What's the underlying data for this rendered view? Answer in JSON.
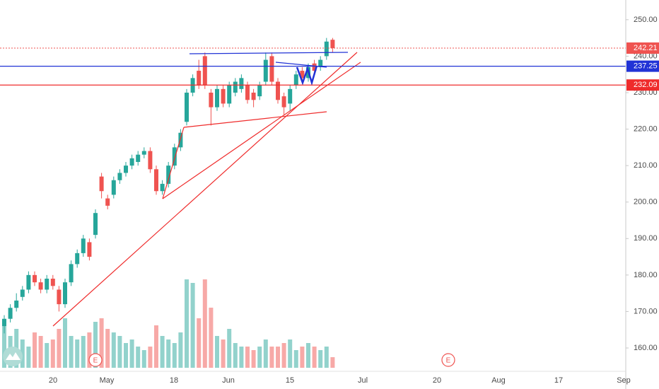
{
  "chart_data": {
    "type": "candlestick",
    "ylim": [
      153.6,
      255.4
    ],
    "yticks": [
      {
        "value": 160,
        "label": "160.00"
      },
      {
        "value": 170,
        "label": "170.00"
      },
      {
        "value": 180,
        "label": "180.00"
      },
      {
        "value": 190,
        "label": "190.00"
      },
      {
        "value": 200,
        "label": "200.00"
      },
      {
        "value": 210,
        "label": "210.00"
      },
      {
        "value": 220,
        "label": "220.00"
      },
      {
        "value": 230,
        "label": "230.00"
      },
      {
        "value": 240,
        "label": "240.00"
      },
      {
        "value": 250,
        "label": "250.00"
      }
    ],
    "x_tick_labels": [
      "20",
      "May",
      "18",
      "Jun",
      "15",
      "Jul",
      "20",
      "Aug",
      "17",
      "Sep"
    ],
    "up_color": "#26a69a",
    "down_color": "#ef5350",
    "open": [
      166,
      168,
      171,
      174,
      176,
      180,
      178,
      176,
      179,
      176,
      172,
      178,
      183,
      186,
      189,
      191,
      207,
      201,
      202,
      206,
      208,
      210,
      211,
      213,
      214,
      209,
      203,
      205,
      210,
      215,
      222,
      230,
      236,
      240,
      230,
      226,
      231,
      227,
      230,
      231,
      232,
      230,
      229,
      233,
      240,
      233,
      229,
      227,
      232,
      236,
      234,
      238,
      237,
      240,
      244.5
    ],
    "high": [
      169,
      172,
      175,
      177,
      181,
      181,
      179,
      180,
      180,
      177,
      179,
      184,
      187,
      191,
      190,
      198,
      208,
      202,
      207,
      209,
      211,
      213,
      214,
      215,
      215,
      210,
      206,
      211,
      216,
      220,
      231,
      235,
      239,
      241,
      231,
      232,
      232,
      233,
      234,
      235,
      233,
      231,
      233,
      241,
      241,
      234,
      230,
      232,
      236,
      237,
      238,
      239,
      240,
      245,
      245
    ],
    "low": [
      164,
      167,
      170,
      173,
      175,
      177,
      175,
      175,
      176,
      170,
      171,
      177,
      182,
      185,
      184,
      190,
      201,
      198,
      201,
      205,
      207,
      209,
      210,
      212,
      208,
      202,
      202,
      204,
      209,
      214,
      221,
      229,
      231,
      231,
      221,
      225,
      226,
      226,
      229,
      230,
      227,
      226,
      228,
      232,
      232,
      227,
      224,
      225,
      231,
      233,
      233,
      235,
      236,
      239,
      241
    ],
    "close": [
      168,
      171,
      173,
      176,
      180,
      178,
      176,
      179,
      177,
      172,
      178,
      183,
      186,
      190,
      185,
      197,
      203,
      199,
      206,
      208,
      210,
      212,
      213,
      214,
      209,
      203,
      205,
      210,
      215,
      219,
      230,
      234,
      232,
      232,
      226,
      231,
      227,
      232,
      233,
      234,
      228,
      228,
      232,
      239,
      233,
      228,
      226,
      231,
      235,
      234,
      237,
      236,
      239,
      244,
      242.21
    ],
    "volume": [
      60,
      45,
      55,
      40,
      30,
      50,
      45,
      35,
      40,
      55,
      70,
      45,
      40,
      45,
      50,
      65,
      70,
      55,
      50,
      45,
      35,
      40,
      30,
      25,
      30,
      60,
      45,
      40,
      35,
      50,
      125,
      120,
      70,
      125,
      85,
      45,
      40,
      55,
      35,
      30,
      30,
      25,
      30,
      40,
      30,
      30,
      35,
      40,
      25,
      30,
      35,
      30,
      25,
      30,
      15
    ],
    "price_lines": [
      {
        "value": 242.21,
        "color": "#ef5350",
        "style": "dotted"
      },
      {
        "value": 237.25,
        "color": "#2133d6",
        "style": "solid"
      },
      {
        "value": 232.09,
        "color": "#ef2b2b",
        "style": "solid"
      }
    ],
    "earnings_markers": [
      "E",
      "E"
    ]
  }
}
